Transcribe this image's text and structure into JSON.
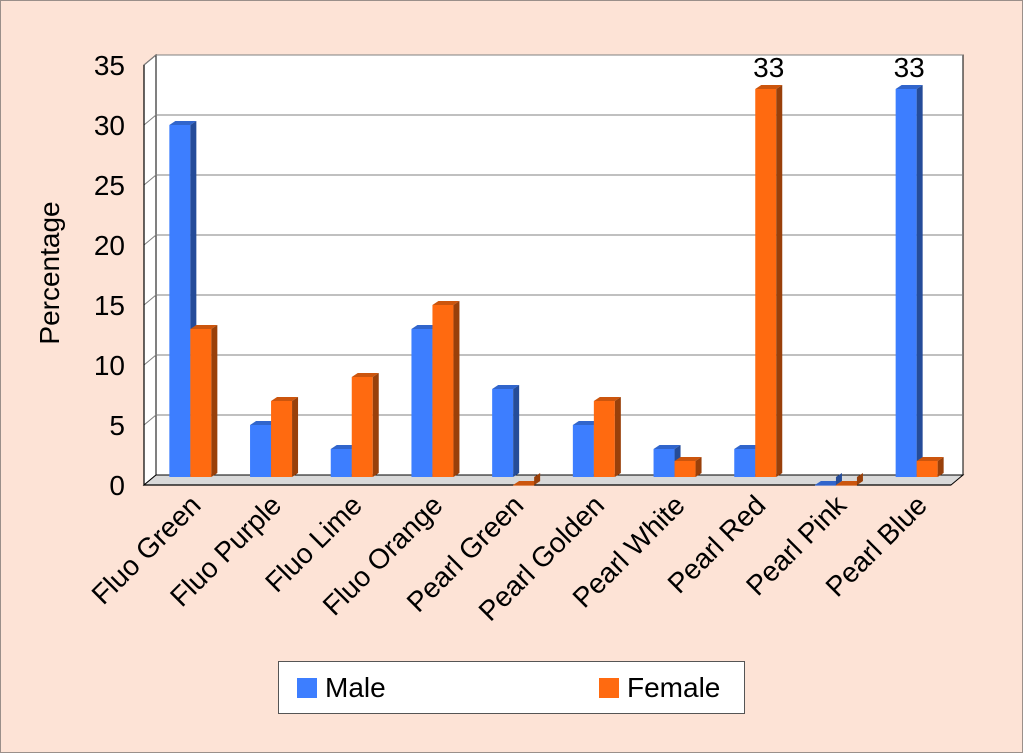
{
  "chart_data": {
    "type": "bar",
    "categories": [
      "Fluo Green",
      "Fluo Purple",
      "Fluo Lime",
      "Fluo Orange",
      "Pearl Green",
      "Pearl Golden",
      "Pearl White",
      "Pearl Red",
      "Pearl Pink",
      "Pearl Blue"
    ],
    "series": [
      {
        "name": "Male",
        "color": "#3d7eff",
        "values": [
          30,
          5,
          3,
          13,
          8,
          5,
          3,
          3,
          0,
          33
        ]
      },
      {
        "name": "Female",
        "color": "#ff6a10",
        "values": [
          13,
          7,
          9,
          15,
          0,
          7,
          2,
          33,
          0,
          2
        ]
      }
    ],
    "ylabel": "Percentage",
    "xlabel": "",
    "ylim": [
      0,
      35
    ],
    "yticks": [
      0,
      5,
      10,
      15,
      20,
      25,
      30,
      35
    ],
    "grid": true,
    "legend_position": "bottom",
    "data_labels": [
      {
        "category": "Pearl Red",
        "series": "Female",
        "text": "33"
      },
      {
        "category": "Pearl Blue",
        "series": "Male",
        "text": "33"
      }
    ]
  }
}
